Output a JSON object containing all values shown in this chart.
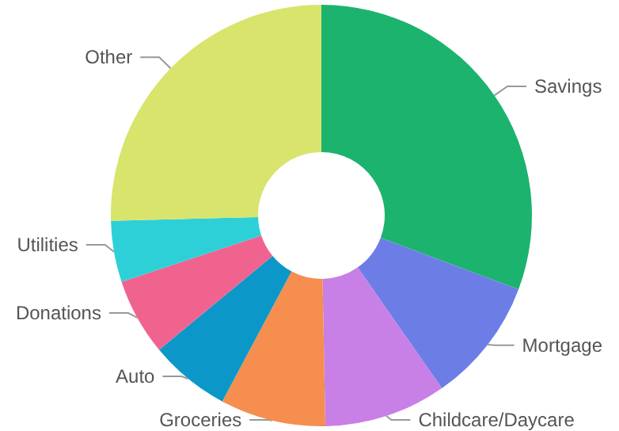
{
  "chart_data": {
    "type": "donut",
    "categories": [
      "Savings",
      "Mortgage",
      "Childcare/Daycare",
      "Groceries",
      "Auto",
      "Donations",
      "Utilities",
      "Other"
    ],
    "values": [
      30.7,
      9.6,
      9.4,
      8.1,
      6.2,
      5.9,
      4.7,
      25.4
    ],
    "colors": [
      "#1cb36f",
      "#6c7ee6",
      "#c87fe6",
      "#f58e4e",
      "#0b98c8",
      "#f0638f",
      "#2dd0d6",
      "#d8e46c"
    ],
    "legend": false
  }
}
